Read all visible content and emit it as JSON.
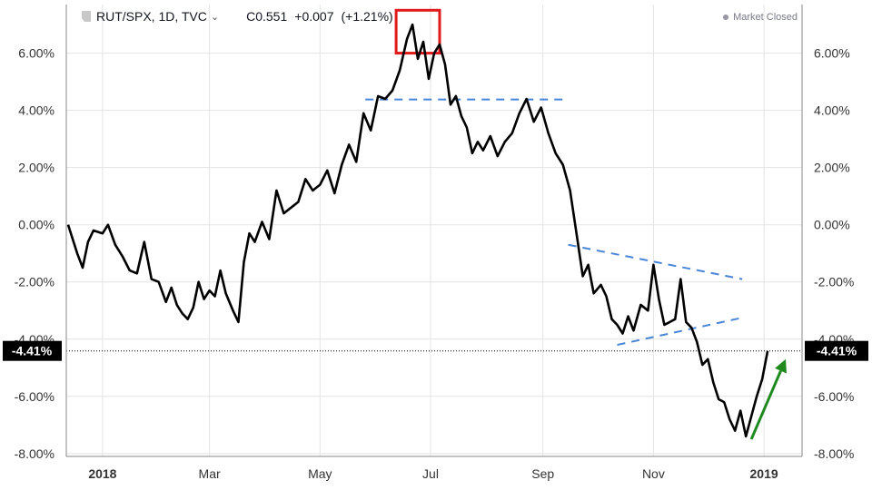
{
  "legend": {
    "symbol": "RUT/SPX, 1D, TVC",
    "close": "C0.551",
    "change": "+0.007",
    "change_pct": "(+1.21%)",
    "caret_icon": "chevron-down-icon"
  },
  "status": {
    "text": "Market Closed"
  },
  "chart_data": {
    "type": "line",
    "title": "",
    "xlabel": "",
    "ylabel": "",
    "ylim": [
      -8.1,
      7.7
    ],
    "y_ticks": [
      "6.00%",
      "4.00%",
      "2.00%",
      "0.00%",
      "-2.00%",
      "-4.00%",
      "-6.00%",
      "-8.00%"
    ],
    "y_tick_values": [
      6,
      4,
      2,
      0,
      -2,
      -4,
      -6,
      -8
    ],
    "x_ticks": [
      "2018",
      "Mar",
      "May",
      "Jul",
      "Sep",
      "Nov",
      "2019"
    ],
    "x_tick_dates": [
      "2018-01-01",
      "2018-03-01",
      "2018-05-01",
      "2018-07-01",
      "2018-09-01",
      "2018-11-01",
      "2019-01-01"
    ],
    "xlim": [
      "2017-12-12",
      "2019-01-22"
    ],
    "grid": true,
    "current_value": -4.41,
    "current_label": "-4.41%",
    "series": [
      {
        "color": "#000000",
        "points": [
          [
            "2017-12-13",
            0.0
          ],
          [
            "2017-12-18",
            -1.0
          ],
          [
            "2017-12-21",
            -1.5
          ],
          [
            "2017-12-24",
            -0.6
          ],
          [
            "2017-12-27",
            -0.2
          ],
          [
            "2018-01-01",
            -0.3
          ],
          [
            "2018-01-04",
            0.0
          ],
          [
            "2018-01-08",
            -0.7
          ],
          [
            "2018-01-12",
            -1.1
          ],
          [
            "2018-01-16",
            -1.6
          ],
          [
            "2018-01-20",
            -1.7
          ],
          [
            "2018-01-24",
            -0.6
          ],
          [
            "2018-01-28",
            -1.9
          ],
          [
            "2018-02-01",
            -2.0
          ],
          [
            "2018-02-05",
            -2.7
          ],
          [
            "2018-02-08",
            -2.2
          ],
          [
            "2018-02-11",
            -2.8
          ],
          [
            "2018-02-14",
            -3.1
          ],
          [
            "2018-02-17",
            -3.3
          ],
          [
            "2018-02-20",
            -2.9
          ],
          [
            "2018-02-23",
            -2.0
          ],
          [
            "2018-02-26",
            -2.6
          ],
          [
            "2018-03-01",
            -2.3
          ],
          [
            "2018-03-04",
            -2.5
          ],
          [
            "2018-03-07",
            -1.6
          ],
          [
            "2018-03-10",
            -2.4
          ],
          [
            "2018-03-14",
            -3.0
          ],
          [
            "2018-03-17",
            -3.4
          ],
          [
            "2018-03-20",
            -1.3
          ],
          [
            "2018-03-23",
            -0.3
          ],
          [
            "2018-03-26",
            -0.6
          ],
          [
            "2018-03-30",
            0.1
          ],
          [
            "2018-04-03",
            -0.5
          ],
          [
            "2018-04-07",
            1.2
          ],
          [
            "2018-04-11",
            0.4
          ],
          [
            "2018-04-15",
            0.6
          ],
          [
            "2018-04-19",
            0.8
          ],
          [
            "2018-04-23",
            1.6
          ],
          [
            "2018-04-27",
            1.2
          ],
          [
            "2018-05-01",
            1.4
          ],
          [
            "2018-05-05",
            1.9
          ],
          [
            "2018-05-09",
            1.1
          ],
          [
            "2018-05-13",
            2.1
          ],
          [
            "2018-05-17",
            2.8
          ],
          [
            "2018-05-21",
            2.2
          ],
          [
            "2018-05-25",
            3.9
          ],
          [
            "2018-05-29",
            3.3
          ],
          [
            "2018-06-02",
            4.5
          ],
          [
            "2018-06-06",
            4.4
          ],
          [
            "2018-06-10",
            4.7
          ],
          [
            "2018-06-14",
            5.4
          ],
          [
            "2018-06-18",
            6.5
          ],
          [
            "2018-06-21",
            7.0
          ],
          [
            "2018-06-24",
            5.8
          ],
          [
            "2018-06-27",
            6.4
          ],
          [
            "2018-06-30",
            5.1
          ],
          [
            "2018-07-03",
            6.0
          ],
          [
            "2018-07-06",
            6.3
          ],
          [
            "2018-07-09",
            5.6
          ],
          [
            "2018-07-12",
            4.2
          ],
          [
            "2018-07-15",
            4.5
          ],
          [
            "2018-07-18",
            3.8
          ],
          [
            "2018-07-21",
            3.4
          ],
          [
            "2018-07-24",
            2.5
          ],
          [
            "2018-07-27",
            2.9
          ],
          [
            "2018-07-30",
            2.6
          ],
          [
            "2018-08-03",
            3.1
          ],
          [
            "2018-08-07",
            2.4
          ],
          [
            "2018-08-11",
            2.9
          ],
          [
            "2018-08-15",
            3.2
          ],
          [
            "2018-08-19",
            3.9
          ],
          [
            "2018-08-23",
            4.4
          ],
          [
            "2018-08-27",
            3.6
          ],
          [
            "2018-08-31",
            4.1
          ],
          [
            "2018-09-04",
            3.2
          ],
          [
            "2018-09-08",
            2.5
          ],
          [
            "2018-09-12",
            2.1
          ],
          [
            "2018-09-16",
            1.2
          ],
          [
            "2018-09-20",
            -0.5
          ],
          [
            "2018-09-23",
            -1.8
          ],
          [
            "2018-09-26",
            -1.4
          ],
          [
            "2018-09-29",
            -2.4
          ],
          [
            "2018-10-03",
            -2.1
          ],
          [
            "2018-10-06",
            -2.5
          ],
          [
            "2018-10-09",
            -3.3
          ],
          [
            "2018-10-12",
            -3.5
          ],
          [
            "2018-10-15",
            -3.8
          ],
          [
            "2018-10-18",
            -3.2
          ],
          [
            "2018-10-21",
            -3.7
          ],
          [
            "2018-10-25",
            -2.8
          ],
          [
            "2018-10-29",
            -3.0
          ],
          [
            "2018-11-01",
            -1.4
          ],
          [
            "2018-11-04",
            -2.6
          ],
          [
            "2018-11-07",
            -3.5
          ],
          [
            "2018-11-10",
            -3.4
          ],
          [
            "2018-11-13",
            -3.3
          ],
          [
            "2018-11-16",
            -1.9
          ],
          [
            "2018-11-19",
            -3.4
          ],
          [
            "2018-11-22",
            -3.6
          ],
          [
            "2018-11-25",
            -4.1
          ],
          [
            "2018-11-28",
            -4.9
          ],
          [
            "2018-12-01",
            -4.7
          ],
          [
            "2018-12-04",
            -5.5
          ],
          [
            "2018-12-07",
            -6.1
          ],
          [
            "2018-12-10",
            -6.2
          ],
          [
            "2018-12-13",
            -6.8
          ],
          [
            "2018-12-16",
            -7.2
          ],
          [
            "2018-12-19",
            -6.5
          ],
          [
            "2018-12-22",
            -7.4
          ],
          [
            "2018-12-25",
            -6.7
          ],
          [
            "2018-12-28",
            -6.0
          ],
          [
            "2018-12-31",
            -5.4
          ],
          [
            "2019-01-03",
            -4.41
          ]
        ]
      }
    ],
    "annotations": {
      "dashed_color": "#4a86d8",
      "arrow_color": "#1e8a1e",
      "highlight_color": "#e0191b",
      "dashed_lines": [
        {
          "from": [
            "2018-05-26",
            4.38
          ],
          "to": [
            "2018-09-12",
            4.38
          ]
        },
        {
          "from": [
            "2018-09-15",
            -0.7
          ],
          "to": [
            "2018-12-20",
            -1.9
          ]
        },
        {
          "from": [
            "2018-10-12",
            -4.2
          ],
          "to": [
            "2018-12-20",
            -3.25
          ]
        }
      ],
      "arrow": {
        "from": [
          "2018-12-25",
          -7.5
        ],
        "to": [
          "2019-01-13",
          -4.7
        ]
      },
      "highlight_box": {
        "from": [
          "2018-06-12",
          7.5
        ],
        "to": [
          "2018-07-06",
          6.0
        ]
      }
    }
  }
}
